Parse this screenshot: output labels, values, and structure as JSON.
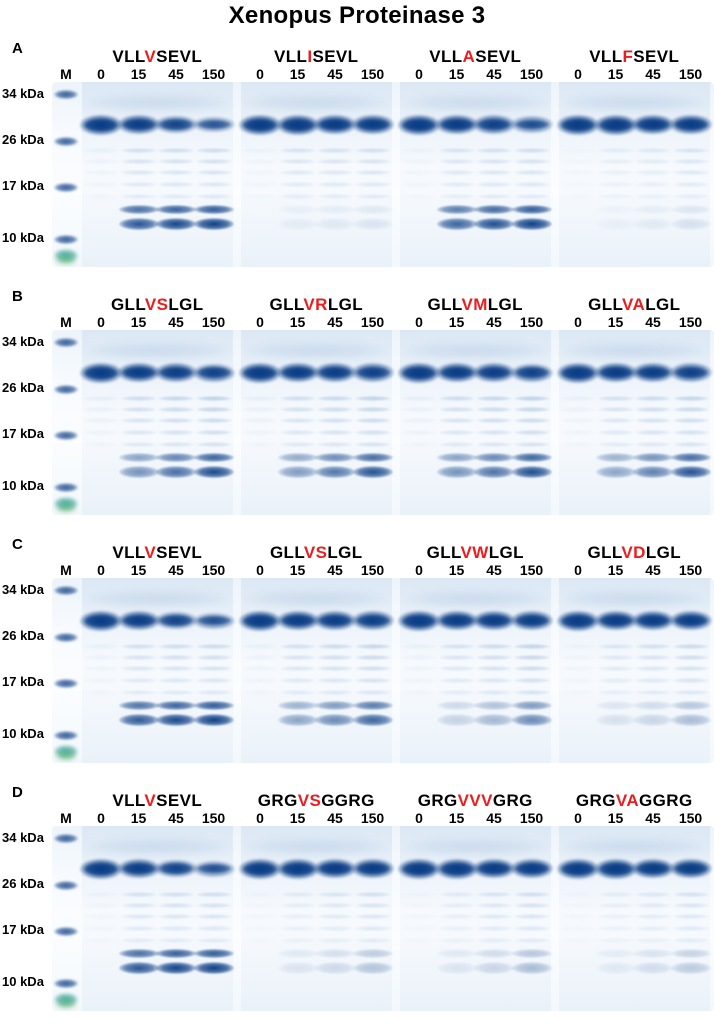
{
  "title": "Xenopus Proteinase 3",
  "colors": {
    "band_blue": "#1458a8",
    "band_dark": "#0a3d85",
    "gel_tint": "#edf4fa",
    "dye_teal": "#2f9e8e",
    "dye_green": "#59b269",
    "highlight_red": "#ee1c1e",
    "text": "#000000"
  },
  "axis": {
    "marker_label": "M",
    "time_points": [
      "0",
      "15",
      "45",
      "150"
    ],
    "kda_labels": [
      "34 kDa",
      "26 kDa",
      "17 kDa",
      "10 kDa"
    ]
  },
  "gel_data": {
    "type": "sds-page-gel",
    "panels": [
      {
        "label": "A",
        "groups": [
          {
            "sequence": [
              {
                "t": "VLL"
              },
              {
                "t": "V",
                "red": true
              },
              {
                "t": "SEVL"
              }
            ],
            "main": [
              1,
              0.9,
              0.68,
              0.42
            ],
            "ladder": [
              0.1,
              0.3,
              0.32,
              0.34
            ],
            "products": [
              0,
              0.88,
              0.97,
              1
            ]
          },
          {
            "sequence": [
              {
                "t": "VLL"
              },
              {
                "t": "I",
                "red": true
              },
              {
                "t": "SEVL"
              }
            ],
            "main": [
              1,
              1,
              0.98,
              0.96
            ],
            "ladder": [
              0.08,
              0.26,
              0.28,
              0.3
            ],
            "products": [
              0,
              0.06,
              0.08,
              0.1
            ]
          },
          {
            "sequence": [
              {
                "t": "VLL"
              },
              {
                "t": "A",
                "red": true
              },
              {
                "t": "SEVL"
              }
            ],
            "main": [
              1,
              0.95,
              0.8,
              0.55
            ],
            "ladder": [
              0.08,
              0.26,
              0.3,
              0.32
            ],
            "products": [
              0,
              0.8,
              0.92,
              1
            ]
          },
          {
            "sequence": [
              {
                "t": "VLL"
              },
              {
                "t": "F",
                "red": true
              },
              {
                "t": "SEVL"
              }
            ],
            "main": [
              1,
              1,
              0.98,
              0.97
            ],
            "ladder": [
              0.05,
              0.16,
              0.2,
              0.26
            ],
            "products": [
              0,
              0.04,
              0.07,
              0.12
            ]
          }
        ]
      },
      {
        "label": "B",
        "groups": [
          {
            "sequence": [
              {
                "t": "GLL"
              },
              {
                "t": "VS",
                "red": true
              },
              {
                "t": "LGL"
              }
            ],
            "main": [
              1,
              0.95,
              0.88,
              0.75
            ],
            "ladder": [
              0.12,
              0.35,
              0.42,
              0.48
            ],
            "products": [
              0,
              0.55,
              0.75,
              0.95
            ]
          },
          {
            "sequence": [
              {
                "t": "GLL"
              },
              {
                "t": "VR",
                "red": true
              },
              {
                "t": "LGL"
              }
            ],
            "main": [
              1,
              0.95,
              0.9,
              0.78
            ],
            "ladder": [
              0.12,
              0.34,
              0.4,
              0.46
            ],
            "products": [
              0,
              0.5,
              0.7,
              0.9
            ]
          },
          {
            "sequence": [
              {
                "t": "GLL"
              },
              {
                "t": "VM",
                "red": true
              },
              {
                "t": "LGL"
              }
            ],
            "main": [
              1,
              0.95,
              0.88,
              0.76
            ],
            "ladder": [
              0.12,
              0.35,
              0.42,
              0.48
            ],
            "products": [
              0,
              0.55,
              0.72,
              0.93
            ]
          },
          {
            "sequence": [
              {
                "t": "GLL"
              },
              {
                "t": "VA",
                "red": true
              },
              {
                "t": "LGL"
              }
            ],
            "main": [
              1,
              0.96,
              0.9,
              0.8
            ],
            "ladder": [
              0.1,
              0.3,
              0.38,
              0.44
            ],
            "products": [
              0,
              0.45,
              0.65,
              0.9
            ]
          }
        ]
      },
      {
        "label": "C",
        "groups": [
          {
            "sequence": [
              {
                "t": "VLL"
              },
              {
                "t": "V",
                "red": true
              },
              {
                "t": "SEVL"
              }
            ],
            "main": [
              1,
              0.9,
              0.7,
              0.5
            ],
            "ladder": [
              0.1,
              0.3,
              0.34,
              0.36
            ],
            "products": [
              0,
              0.85,
              0.95,
              1
            ]
          },
          {
            "sequence": [
              {
                "t": "GLL"
              },
              {
                "t": "VS",
                "red": true
              },
              {
                "t": "LGL"
              }
            ],
            "main": [
              1,
              0.96,
              0.9,
              0.85
            ],
            "ladder": [
              0.1,
              0.3,
              0.36,
              0.42
            ],
            "products": [
              0,
              0.45,
              0.6,
              0.8
            ]
          },
          {
            "sequence": [
              {
                "t": "GLL"
              },
              {
                "t": "VW",
                "red": true
              },
              {
                "t": "LGL"
              }
            ],
            "main": [
              1,
              0.97,
              0.94,
              0.9
            ],
            "ladder": [
              0.1,
              0.28,
              0.36,
              0.46
            ],
            "products": [
              0,
              0.2,
              0.35,
              0.6
            ]
          },
          {
            "sequence": [
              {
                "t": "GLL"
              },
              {
                "t": "VD",
                "red": true
              },
              {
                "t": "LGL"
              }
            ],
            "main": [
              1,
              0.98,
              0.96,
              0.94
            ],
            "ladder": [
              0.08,
              0.24,
              0.3,
              0.38
            ],
            "products": [
              0,
              0.12,
              0.18,
              0.32
            ]
          }
        ]
      },
      {
        "label": "D",
        "groups": [
          {
            "sequence": [
              {
                "t": "VLL"
              },
              {
                "t": "V",
                "red": true
              },
              {
                "t": "SEVL"
              }
            ],
            "main": [
              1,
              0.9,
              0.72,
              0.5
            ],
            "ladder": [
              0.08,
              0.28,
              0.3,
              0.32
            ],
            "products": [
              0,
              0.88,
              0.98,
              1
            ]
          },
          {
            "sequence": [
              {
                "t": "GRG"
              },
              {
                "t": "VS",
                "red": true
              },
              {
                "t": "GGRG"
              }
            ],
            "main": [
              1,
              1,
              0.98,
              0.96
            ],
            "ladder": [
              0.06,
              0.18,
              0.24,
              0.3
            ],
            "products": [
              0,
              0.1,
              0.16,
              0.28
            ]
          },
          {
            "sequence": [
              {
                "t": "GRG"
              },
              {
                "t": "VVV",
                "red": true
              },
              {
                "t": "GRG"
              }
            ],
            "main": [
              1,
              1,
              0.98,
              0.96
            ],
            "ladder": [
              0.06,
              0.18,
              0.26,
              0.32
            ],
            "products": [
              0,
              0.1,
              0.18,
              0.32
            ]
          },
          {
            "sequence": [
              {
                "t": "GRG"
              },
              {
                "t": "VA",
                "red": true
              },
              {
                "t": "GGRG"
              }
            ],
            "main": [
              1,
              1,
              0.98,
              0.96
            ],
            "ladder": [
              0.06,
              0.16,
              0.22,
              0.28
            ],
            "products": [
              0,
              0.08,
              0.14,
              0.24
            ]
          }
        ]
      }
    ]
  }
}
